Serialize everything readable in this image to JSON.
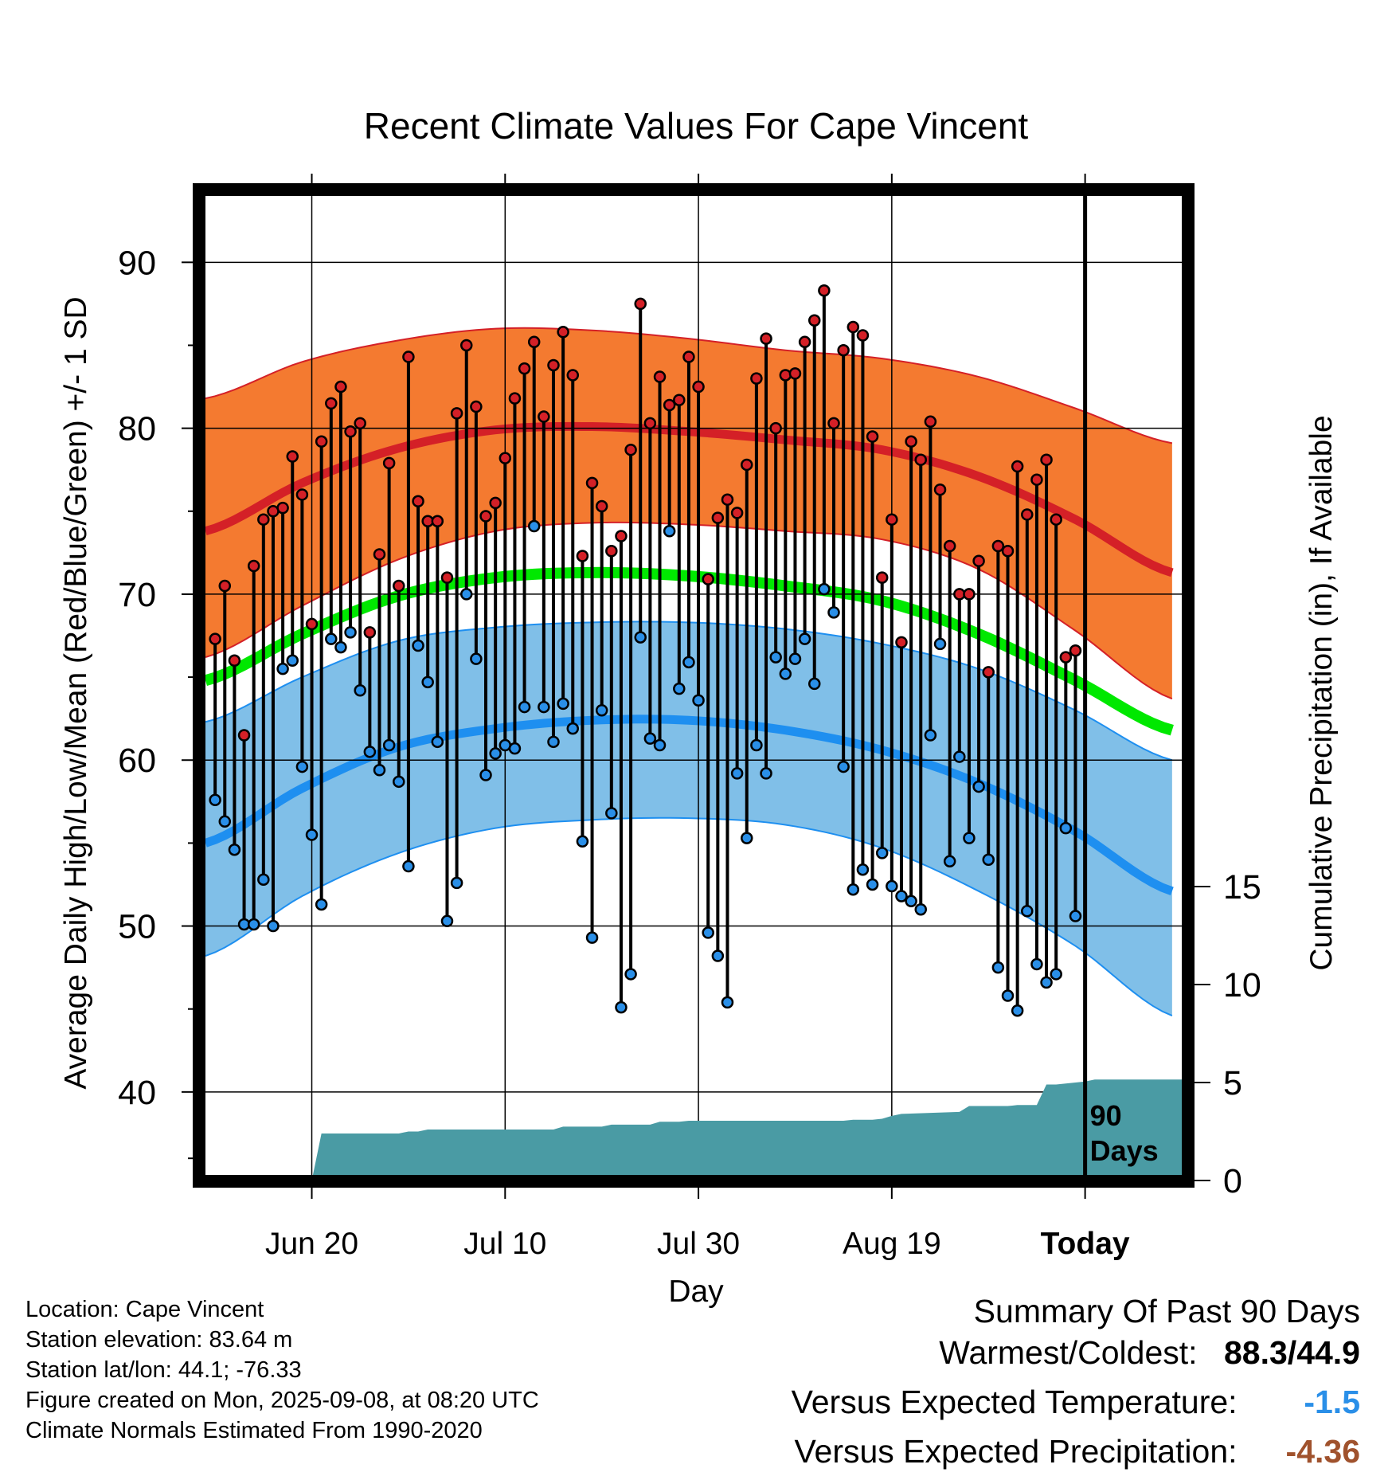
{
  "chart_data": {
    "type": "line",
    "title": "Recent Climate Values For Cape Vincent",
    "xlabel": "Day",
    "ylabel": "Average Daily High/Low/Mean (Red/Blue/Green) +/- 1 SD",
    "y2label": "Cumulative Precipitation (in), If Available",
    "ylim": [
      35,
      94
    ],
    "y2lim": [
      0,
      40
    ],
    "yticks": [
      40,
      50,
      60,
      70,
      80,
      90
    ],
    "y2ticks": [
      0,
      5,
      10,
      15
    ],
    "xticks": [
      {
        "day": 11,
        "label": "Jun 20"
      },
      {
        "day": 31,
        "label": "Jul 10"
      },
      {
        "day": 51,
        "label": "Jul 30"
      },
      {
        "day": 71,
        "label": "Aug 19"
      },
      {
        "day": 91,
        "label": "Today"
      }
    ],
    "today_day": 91,
    "window_label": [
      "90",
      "Days"
    ],
    "grid": true,
    "colors": {
      "high_band": "#f47a30",
      "high_mean": "#d42027",
      "low_band": "#80bfe8",
      "low_mean": "#1e8ff0",
      "mean": "#00e800",
      "precip": "#4a9ba4",
      "high_dot": "#d42027",
      "low_dot": "#2a8fe8",
      "coldest_value": "#2a8fe8",
      "precip_departure": "#a0522d"
    },
    "normals": {
      "days": [
        0,
        10,
        20,
        30,
        40,
        50,
        60,
        70,
        80,
        90,
        100
      ],
      "high_mean": [
        73.8,
        76.7,
        78.8,
        79.9,
        80.1,
        79.8,
        79.3,
        78.7,
        77.1,
        74.5,
        71.3
      ],
      "high_upper": [
        81.8,
        84.0,
        85.3,
        86.0,
        85.9,
        85.4,
        84.7,
        84.2,
        83.1,
        81.2,
        79.1
      ],
      "high_lower": [
        66.2,
        69.3,
        72.1,
        73.8,
        74.3,
        74.2,
        73.8,
        73.3,
        71.5,
        67.8,
        63.7
      ],
      "mean": [
        64.8,
        67.6,
        69.9,
        71.0,
        71.3,
        71.1,
        70.5,
        69.6,
        67.6,
        64.8,
        61.8
      ],
      "low_mean": [
        55.0,
        58.3,
        60.8,
        61.9,
        62.4,
        62.4,
        61.8,
        60.6,
        58.6,
        55.7,
        52.1
      ],
      "low_upper": [
        62.3,
        65.0,
        67.2,
        68.0,
        68.3,
        68.3,
        67.9,
        67.0,
        65.5,
        63.0,
        60.0
      ],
      "low_lower": [
        48.2,
        51.8,
        54.4,
        55.9,
        56.4,
        56.5,
        56.1,
        54.7,
        52.1,
        48.8,
        44.6
      ]
    },
    "series": [
      {
        "name": "High",
        "values": [
          67.3,
          70.5,
          66.0,
          61.5,
          71.7,
          74.5,
          75.0,
          75.2,
          78.3,
          76.0,
          68.2,
          79.2,
          81.5,
          82.5,
          79.8,
          80.3,
          67.7,
          72.4,
          77.9,
          70.5,
          84.3,
          75.6,
          74.4,
          74.4,
          71.0,
          80.9,
          85.0,
          81.3,
          74.7,
          75.5,
          78.2,
          81.8,
          83.6,
          85.2,
          80.7,
          83.8,
          85.8,
          83.2,
          72.3,
          76.7,
          75.3,
          72.6,
          73.5,
          78.7,
          87.5,
          80.3,
          83.1,
          81.4,
          81.7,
          84.3,
          82.5,
          70.9,
          74.6,
          75.7,
          74.9,
          77.8,
          83.0,
          85.4,
          80.0,
          83.2,
          83.3,
          85.2,
          86.5,
          88.3,
          80.3,
          84.7,
          86.1,
          85.6,
          79.5,
          71.0,
          74.5,
          67.1,
          79.2,
          78.1,
          80.4,
          76.3,
          72.9,
          70.0,
          70.0,
          72.0,
          65.3,
          72.9,
          72.6,
          77.7,
          74.8,
          76.9,
          78.1,
          74.5,
          66.2,
          66.6
        ]
      },
      {
        "name": "Low",
        "values": [
          57.6,
          56.3,
          54.6,
          50.1,
          50.1,
          52.8,
          50.0,
          65.5,
          66.0,
          59.6,
          55.5,
          51.3,
          67.3,
          66.8,
          67.7,
          64.2,
          60.5,
          59.4,
          60.9,
          58.7,
          53.6,
          66.9,
          64.7,
          61.1,
          50.3,
          52.6,
          70.0,
          66.1,
          59.1,
          60.4,
          60.9,
          60.7,
          63.2,
          74.1,
          63.2,
          61.1,
          63.4,
          61.9,
          55.1,
          49.3,
          63.0,
          56.8,
          45.1,
          47.1,
          67.4,
          61.3,
          60.9,
          73.8,
          64.3,
          65.9,
          63.6,
          49.6,
          48.2,
          45.4,
          59.2,
          55.3,
          60.9,
          59.2,
          66.2,
          65.2,
          66.1,
          67.3,
          64.6,
          70.3,
          68.9,
          59.6,
          52.2,
          53.4,
          52.5,
          54.4,
          52.4,
          51.8,
          51.5,
          51.0,
          61.5,
          67.0,
          53.9,
          60.2,
          55.3,
          58.4,
          54.0,
          47.5,
          45.8,
          44.9,
          50.9,
          47.7,
          46.6,
          47.1,
          55.9,
          50.6
        ]
      },
      {
        "name": "Cumulative Precipitation",
        "days": [
          0,
          11,
          12,
          20,
          21,
          22,
          23,
          24,
          36,
          37,
          41,
          42,
          46,
          47,
          49,
          50,
          55,
          66,
          67,
          69,
          70,
          71,
          72,
          78,
          79,
          83,
          84,
          86,
          87,
          88,
          89,
          90,
          91,
          92,
          101
        ],
        "values": [
          0,
          0,
          2.4,
          2.4,
          2.5,
          2.5,
          2.6,
          2.6,
          2.6,
          2.75,
          2.75,
          2.85,
          2.85,
          3.0,
          3.0,
          3.05,
          3.05,
          3.05,
          3.1,
          3.1,
          3.15,
          3.3,
          3.4,
          3.5,
          3.8,
          3.8,
          3.85,
          3.85,
          4.9,
          4.9,
          4.95,
          5.0,
          5.05,
          5.15,
          5.15
        ]
      }
    ]
  },
  "footer": {
    "location": "Location: Cape Vincent",
    "elevation": "Station elevation: 83.64 m",
    "latlon": "Station lat/lon: 44.1; -76.33",
    "created": "Figure created on Mon, 2025-09-08, at 08:20 UTC",
    "normals": "Climate Normals Estimated From 1990-2020"
  },
  "summary": {
    "title": "Summary Of Past 90 Days",
    "warmest_label": "Warmest/Coldest:",
    "warmest_value": "88.3",
    "slash": "/",
    "coldest_value": "44.9",
    "temp_label": "Versus Expected Temperature:",
    "temp_value": "-1.5",
    "precip_label": "Versus Expected Precipitation:",
    "precip_value": "-4.36"
  }
}
